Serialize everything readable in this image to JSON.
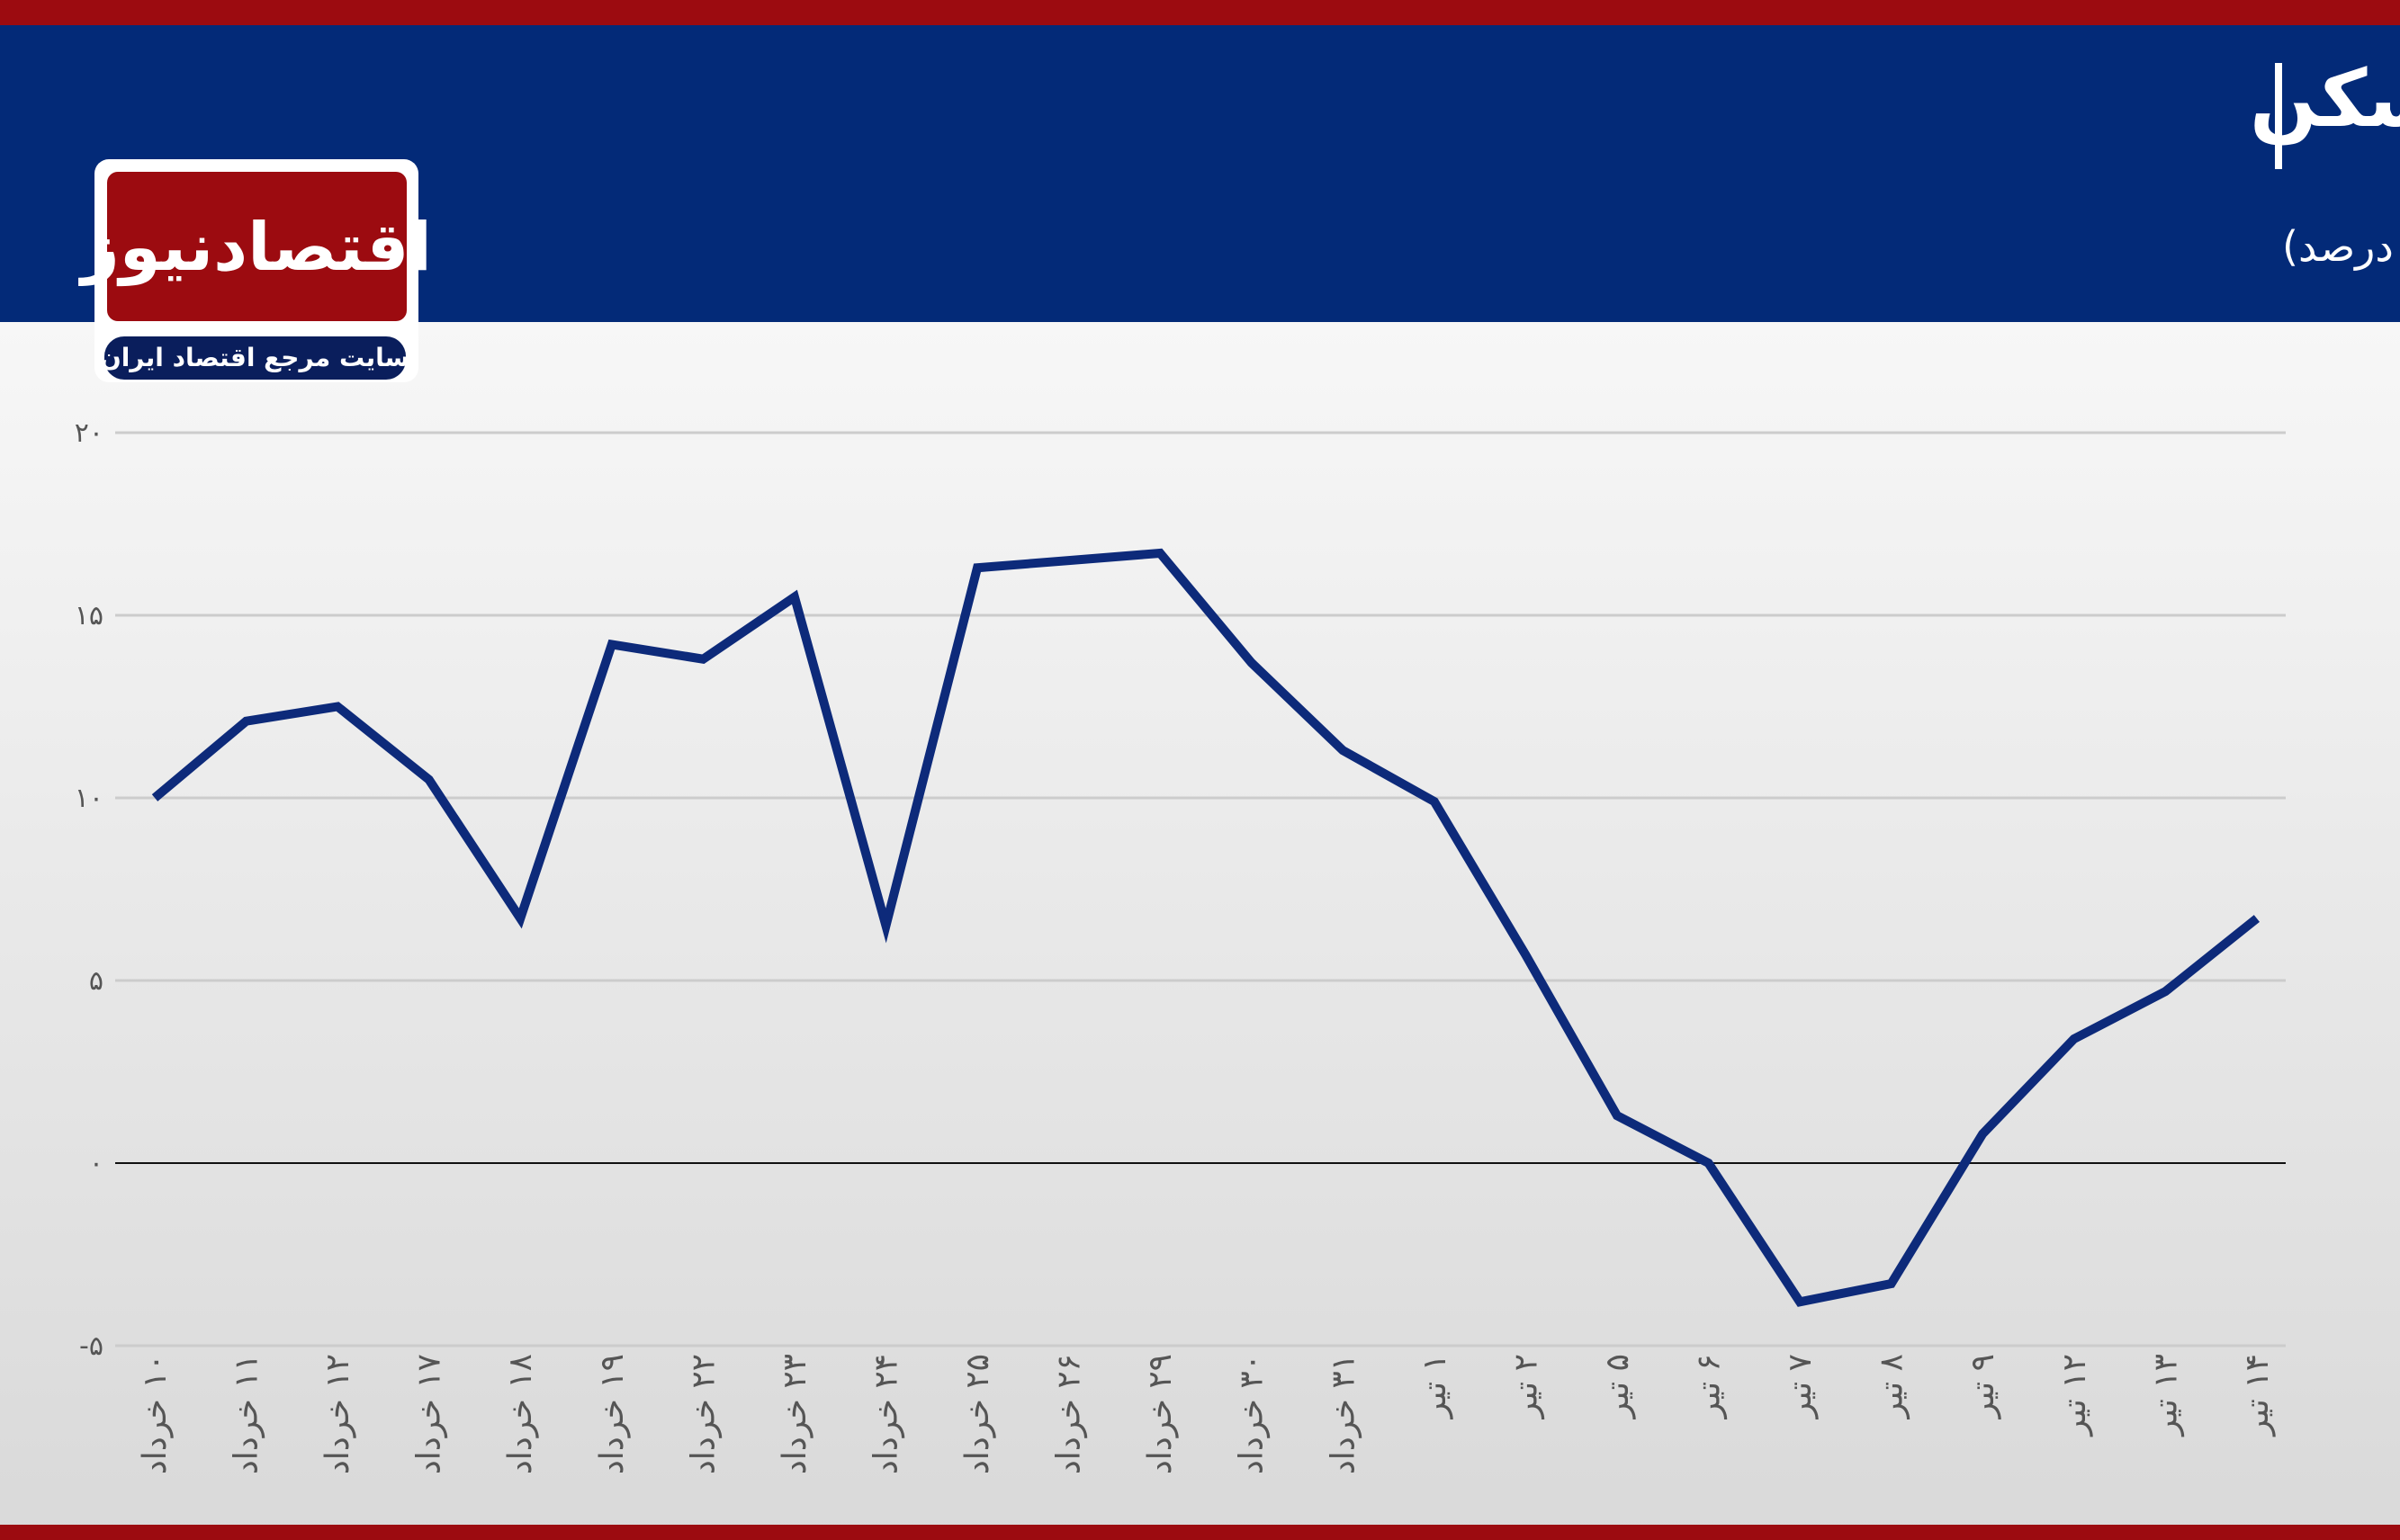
{
  "chart_data": {
    "type": "line",
    "title": "رشد ماهانه قیمت وام مسکن",
    "subtitle": "(واحد: درصد)",
    "logo": "اقتصادنیوز",
    "logo_tagline": "سایت مرجع اقتصاد ایران",
    "categories": [
      "۱۰ خرداد",
      "۱۱ خرداد",
      "۱۲ خرداد",
      "۱۷ خرداد",
      "۱۸ خرداد",
      "۱۹ خرداد",
      "۲۲ خرداد",
      "۲۳ خرداد",
      "۲۴ خرداد",
      "۲۵ خرداد",
      "۲۶ خرداد",
      "۲۹ خرداد",
      "۳۰ خرداد",
      "۳۱ خرداد",
      "۱ تیر",
      "۲ تیر",
      "۵ تیر",
      "۶ تیر",
      "۷ تیر",
      "۸ تیر",
      "۹ تیر",
      "۱۲ تیر",
      "۱۳ تیر",
      "۱۴ تیر"
    ],
    "values": [
      10,
      12.1,
      12.5,
      10.5,
      6.7,
      14.2,
      13.8,
      15.5,
      6.5,
      16.3,
      16.5,
      16.7,
      13.7,
      11.3,
      9.9,
      5.7,
      1.3,
      0,
      -3.8,
      -3.3,
      0.8,
      3.4,
      4.7,
      6.7
    ],
    "color": "#0d2a7a",
    "ylim": [
      -5,
      20
    ],
    "yticks": [
      {
        "value": -5,
        "label": "-۵"
      },
      {
        "value": 0,
        "label": "۰"
      },
      {
        "value": 5,
        "label": "۵"
      },
      {
        "value": 10,
        "label": "۱۰"
      },
      {
        "value": 15,
        "label": "۱۵"
      },
      {
        "value": 20,
        "label": "۲۰"
      }
    ],
    "grid": true
  }
}
